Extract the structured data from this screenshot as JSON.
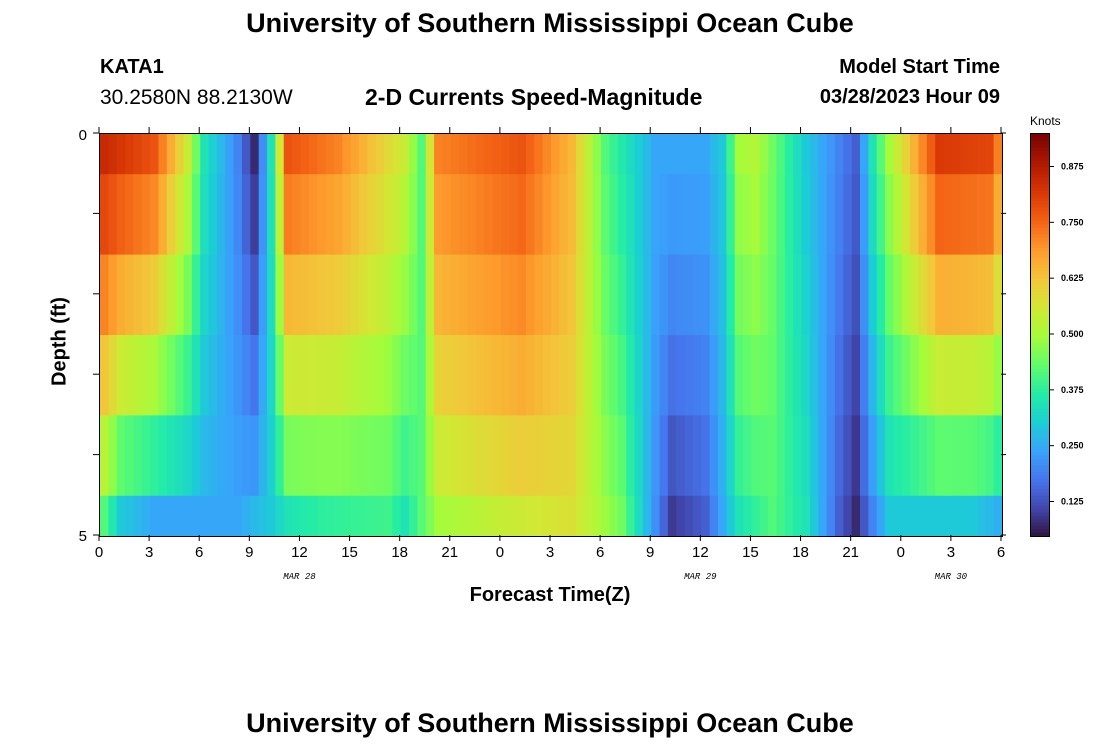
{
  "title_top": "University of Southern Mississippi Ocean Cube",
  "title_bottom": "University of Southern Mississippi Ocean Cube",
  "station": {
    "id": "KATA1",
    "coords": "30.2580N  88.2130W"
  },
  "subtitle": "2-D Currents Speed-Magnitude",
  "model_start": {
    "label": "Model Start Time",
    "value": "03/28/2023 Hour 09"
  },
  "colors": {
    "scale": [
      "#30123b",
      "#4145ab",
      "#4675ed",
      "#39a2fc",
      "#1bcfd4",
      "#24eca6",
      "#61fc6c",
      "#a4fc3b",
      "#d1e834",
      "#f3c63a",
      "#fe9b2d",
      "#f36315",
      "#d93806",
      "#b11901",
      "#7a0402"
    ]
  },
  "chart_data": {
    "type": "heatmap",
    "title": "2-D Currents Speed-Magnitude",
    "xlabel": "Forecast Time(Z)",
    "ylabel": "Depth (ft)",
    "ylim": [
      0,
      5
    ],
    "yticks": [
      "0",
      "5"
    ],
    "xticks": [
      "0",
      "3",
      "6",
      "9",
      "12",
      "15",
      "18",
      "21",
      "0",
      "3",
      "6",
      "9",
      "12",
      "15",
      "18",
      "21",
      "0",
      "3",
      "6"
    ],
    "date_labels": [
      {
        "text": "MAR 28",
        "hour": 12
      },
      {
        "text": "MAR 29",
        "hour": 36
      },
      {
        "text": "MAR 30",
        "hour": 51
      }
    ],
    "hours": 54,
    "depth_bins": [
      "0.0-0.5",
      "0.5-1.5",
      "1.5-2.5",
      "2.5-3.5",
      "3.5-4.5",
      "4.5-5.0"
    ],
    "colorbar": {
      "unit": "Knots",
      "range": [
        0.05,
        0.95
      ],
      "ticks": [
        "0.875",
        "0.750",
        "0.625",
        "0.500",
        "0.375",
        "0.250",
        "0.125"
      ]
    },
    "surface_profile": [
      [
        0,
        0.85
      ],
      [
        3,
        0.78
      ],
      [
        5,
        0.55
      ],
      [
        6,
        0.35
      ],
      [
        8,
        0.2
      ],
      [
        9,
        0.08
      ],
      [
        10,
        0.35
      ],
      [
        11,
        0.78
      ],
      [
        14,
        0.72
      ],
      [
        18,
        0.55
      ],
      [
        19,
        0.42
      ],
      [
        20,
        0.72
      ],
      [
        25,
        0.78
      ],
      [
        28,
        0.65
      ],
      [
        30,
        0.42
      ],
      [
        33,
        0.25
      ],
      [
        36,
        0.25
      ],
      [
        37,
        0.3
      ],
      [
        38,
        0.5
      ],
      [
        39,
        0.52
      ],
      [
        40,
        0.45
      ],
      [
        42,
        0.3
      ],
      [
        44,
        0.2
      ],
      [
        45,
        0.15
      ],
      [
        46,
        0.35
      ],
      [
        47,
        0.5
      ],
      [
        50,
        0.82
      ],
      [
        53,
        0.8
      ],
      [
        54,
        0.65
      ]
    ],
    "bottom_profile": [
      [
        0,
        0.42
      ],
      [
        1,
        0.3
      ],
      [
        3,
        0.25
      ],
      [
        8,
        0.25
      ],
      [
        10,
        0.3
      ],
      [
        11,
        0.35
      ],
      [
        13,
        0.38
      ],
      [
        17,
        0.4
      ],
      [
        18,
        0.35
      ],
      [
        20,
        0.5
      ],
      [
        24,
        0.55
      ],
      [
        28,
        0.58
      ],
      [
        31,
        0.45
      ],
      [
        34,
        0.1
      ],
      [
        36,
        0.15
      ],
      [
        38,
        0.35
      ],
      [
        40,
        0.42
      ],
      [
        42,
        0.35
      ],
      [
        44,
        0.15
      ],
      [
        45,
        0.08
      ],
      [
        46,
        0.2
      ],
      [
        47,
        0.3
      ],
      [
        52,
        0.3
      ],
      [
        54,
        0.25
      ]
    ]
  }
}
